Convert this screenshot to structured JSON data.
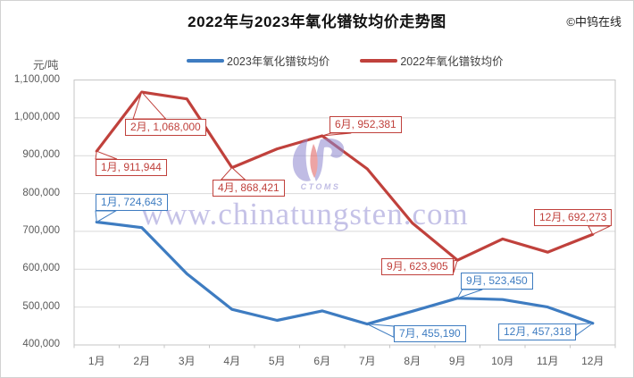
{
  "title": "2022年与2023年氧化镨钕均价走势图",
  "copyright": "©中钨在线",
  "y_axis_unit": "元/吨",
  "legend": [
    {
      "label": "2023年氧化镨钕均价",
      "color": "#3e7cc1"
    },
    {
      "label": "2022年氧化镨钕均价",
      "color": "#c0413c"
    }
  ],
  "watermark": {
    "text": "www.chinatungsten.com",
    "logo_text": "CTOMS"
  },
  "chart_data": {
    "type": "line",
    "title": "2022年与2023年氧化镨钕均价走势图",
    "ylabel": "元/吨",
    "categories": [
      "1月",
      "2月",
      "3月",
      "4月",
      "5月",
      "6月",
      "7月",
      "8月",
      "9月",
      "10月",
      "11月",
      "12月"
    ],
    "series": [
      {
        "name": "2023年氧化镨钕均价",
        "color": "#3e7cc1",
        "values": [
          724643,
          710000,
          588000,
          494000,
          465000,
          490000,
          455190,
          489000,
          523450,
          520000,
          500000,
          457318
        ]
      },
      {
        "name": "2022年氧化镨钕均价",
        "color": "#c0413c",
        "values": [
          911944,
          1068000,
          1050000,
          868421,
          918000,
          952381,
          865000,
          722000,
          623905,
          680000,
          645000,
          692273
        ]
      }
    ],
    "data_labels": [
      {
        "series": 1,
        "index": 0,
        "text": "1月, 911,944"
      },
      {
        "series": 1,
        "index": 1,
        "text": "2月, 1,068,000"
      },
      {
        "series": 1,
        "index": 3,
        "text": "4月, 868,421"
      },
      {
        "series": 1,
        "index": 5,
        "text": "6月, 952,381"
      },
      {
        "series": 1,
        "index": 8,
        "text": "9月, 623,905"
      },
      {
        "series": 1,
        "index": 11,
        "text": "12月, 692,273"
      },
      {
        "series": 0,
        "index": 0,
        "text": "1月, 724,643"
      },
      {
        "series": 0,
        "index": 6,
        "text": "7月, 455,190"
      },
      {
        "series": 0,
        "index": 8,
        "text": "9月, 523,450"
      },
      {
        "series": 0,
        "index": 11,
        "text": "12月, 457,318"
      }
    ],
    "ylim": [
      400000,
      1100000
    ],
    "y_tick_step": 100000,
    "grid": "horizontal",
    "legend_position": "top",
    "colors": {
      "grid": "#d9d9d9",
      "plot_border": "#c6c6c6",
      "axis_text": "#595959"
    }
  }
}
